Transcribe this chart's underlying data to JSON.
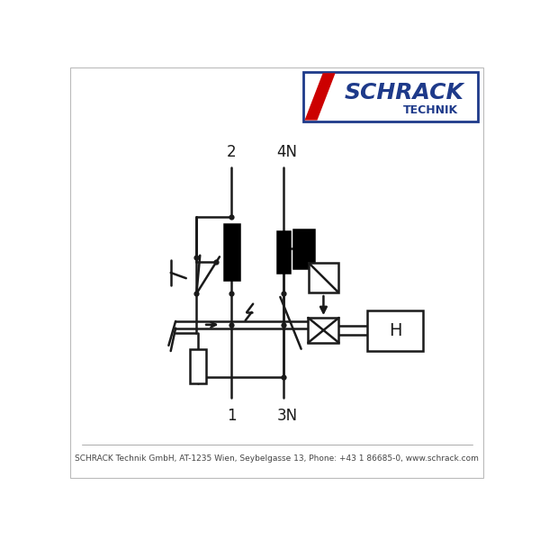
{
  "bg_color": "#ffffff",
  "line_color": "#1a1a1a",
  "lw": 1.8,
  "label_2": "2",
  "label_4N": "4N",
  "label_1": "1",
  "label_3N": "3N",
  "label_H": "H",
  "footer": "SCHRACK Technik GmbH, AT-1235 Wien, Seybelgasse 13, Phone: +43 1 86685-0, www.schrack.com",
  "logo_blue": "#1e3a8a",
  "logo_red": "#cc0000"
}
